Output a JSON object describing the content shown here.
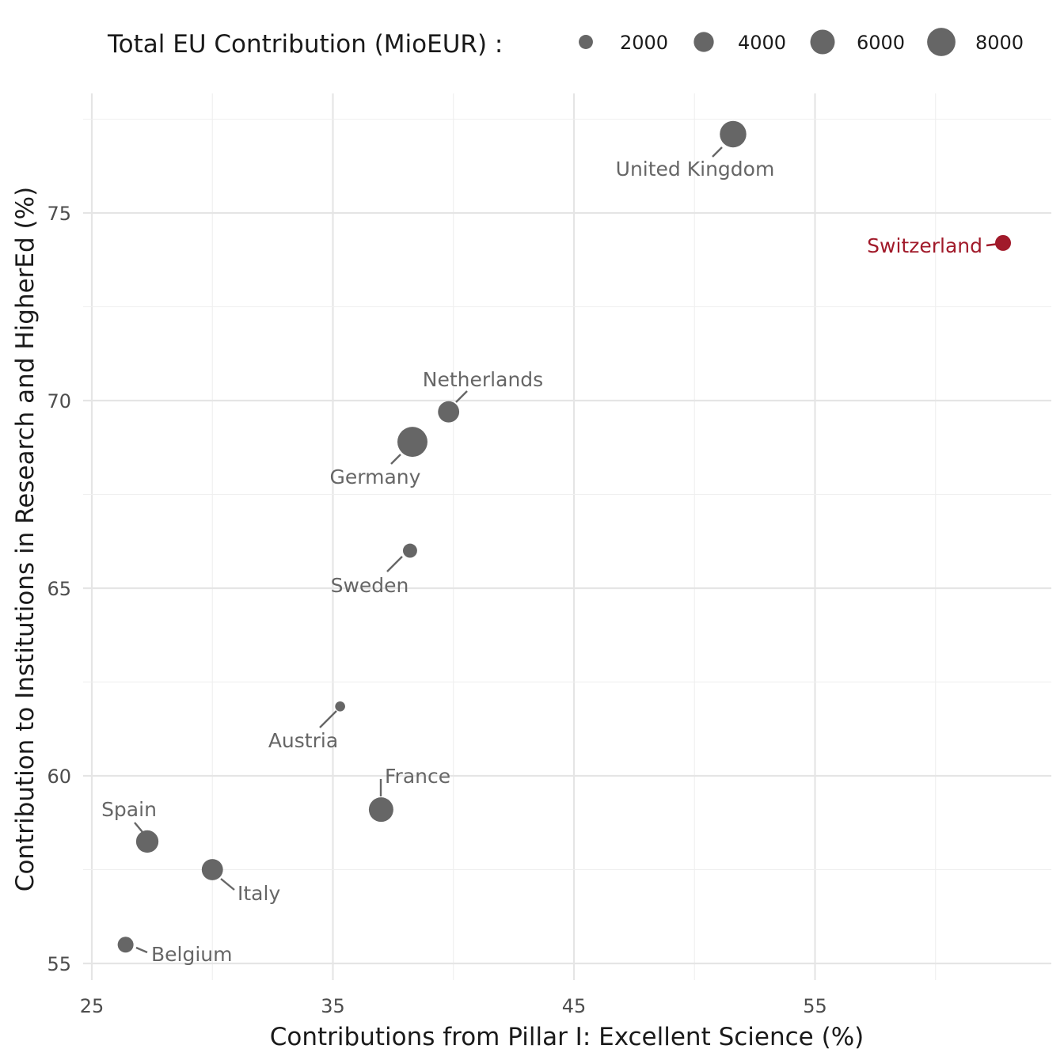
{
  "chart_data": {
    "type": "scatter",
    "title": "",
    "xlabel": "Contributions from Pillar I: Excellent Science (%)",
    "ylabel": "Contribution to Institutions in Research and HigherEd (%)",
    "xlim": [
      25,
      63
    ],
    "ylim": [
      54.7,
      78.0
    ],
    "x_ticks": [
      25,
      35,
      45,
      55
    ],
    "y_ticks": [
      55,
      60,
      65,
      70,
      75
    ],
    "grid": true,
    "legend": {
      "title": "Total EU Contribution (MioEUR) :",
      "position": "top",
      "sizes": [
        2000,
        4000,
        6000,
        8000
      ]
    },
    "colors": {
      "default": "#666666",
      "highlight": "#a11a2a"
    },
    "points": [
      {
        "label": "United Kingdom",
        "x": 51.6,
        "y": 77.1,
        "size": 7000,
        "highlight": false
      },
      {
        "label": "Switzerland",
        "x": 62.8,
        "y": 74.2,
        "size": 2500,
        "highlight": true
      },
      {
        "label": "Netherlands",
        "x": 39.8,
        "y": 69.7,
        "size": 4500,
        "highlight": false
      },
      {
        "label": "Germany",
        "x": 38.3,
        "y": 68.9,
        "size": 9000,
        "highlight": false
      },
      {
        "label": "Sweden",
        "x": 38.2,
        "y": 66.0,
        "size": 2000,
        "highlight": false
      },
      {
        "label": "Austria",
        "x": 35.3,
        "y": 61.85,
        "size": 1000,
        "highlight": false
      },
      {
        "label": "France",
        "x": 37.0,
        "y": 59.1,
        "size": 6000,
        "highlight": false
      },
      {
        "label": "Spain",
        "x": 27.3,
        "y": 58.25,
        "size": 5000,
        "highlight": false
      },
      {
        "label": "Italy",
        "x": 30.0,
        "y": 57.5,
        "size": 4500,
        "highlight": false
      },
      {
        "label": "Belgium",
        "x": 26.4,
        "y": 55.5,
        "size": 2500,
        "highlight": false
      }
    ]
  }
}
